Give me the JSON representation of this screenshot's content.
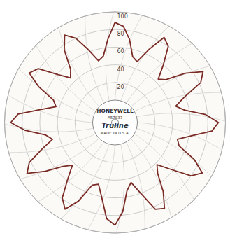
{
  "chart_data": {
    "type": "polar_line",
    "center_text": [
      "HONEYWELL",
      "A57837",
      "Truline",
      "MADE IN U.S.A."
    ],
    "x": [
      0,
      5,
      10,
      15,
      20,
      25,
      30,
      35,
      40,
      45,
      50,
      55,
      60,
      65,
      70,
      75,
      80,
      85,
      90,
      95,
      100,
      105,
      110,
      115,
      120,
      125,
      130,
      135,
      140,
      145,
      150,
      155,
      160,
      165,
      170,
      175,
      180,
      185,
      190,
      195,
      200,
      205,
      210,
      215,
      220,
      225,
      230,
      235,
      240,
      245,
      250,
      255,
      260,
      265,
      270,
      275,
      280,
      285,
      290,
      295,
      300,
      305,
      310,
      315,
      320,
      325,
      330,
      335,
      340,
      345,
      350,
      355
    ],
    "values": [
      88,
      84,
      70,
      52,
      48,
      66,
      86,
      80,
      60,
      44,
      50,
      72,
      90,
      82,
      58,
      46,
      55,
      78,
      92,
      85,
      62,
      48,
      52,
      74,
      89,
      80,
      57,
      42,
      50,
      70,
      87,
      83,
      60,
      45,
      53,
      76,
      91,
      84,
      61,
      47,
      50,
      73,
      88,
      79,
      58,
      43,
      52,
      71,
      90,
      82,
      63,
      48,
      55,
      77,
      93,
      85,
      60,
      44,
      49,
      70,
      87,
      81,
      59,
      46,
      53,
      75,
      89,
      80,
      62,
      47,
      51,
      69
    ],
    "color": "#7b2b25",
    "xlim": [
      0,
      360
    ],
    "xticks": [
      0,
      15,
      30,
      45,
      60,
      75,
      90,
      105,
      120,
      135,
      150,
      165,
      180,
      195,
      210,
      225,
      240,
      255,
      270,
      285,
      300,
      315,
      330,
      345
    ],
    "ylim": [
      0,
      100
    ],
    "yticks": [
      20,
      40,
      60,
      80,
      100
    ],
    "grid": true,
    "tick_labels": "y"
  }
}
